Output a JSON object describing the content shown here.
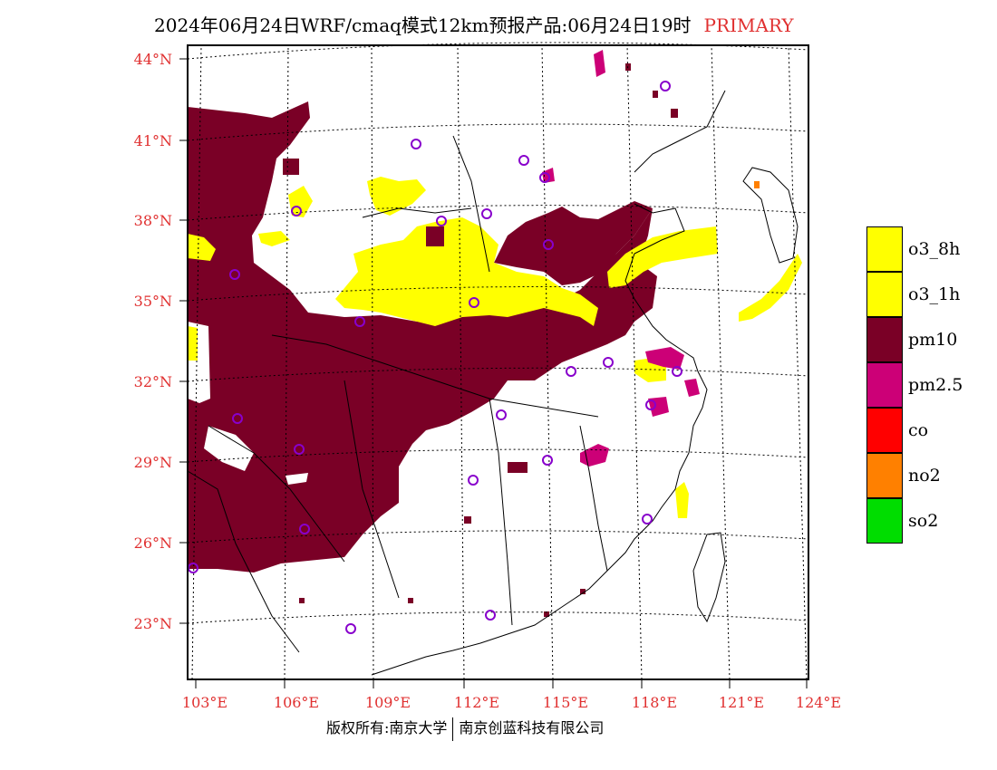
{
  "title": {
    "text": "2024年06月24日WRF/cmaq模式12km预报产品:06月24日19时",
    "primary": "PRIMARY",
    "primary_color": "#e03030"
  },
  "axes": {
    "lat_labels": [
      "44°N",
      "41°N",
      "38°N",
      "35°N",
      "32°N",
      "29°N",
      "26°N",
      "23°N"
    ],
    "lon_labels": [
      "103°E",
      "106°E",
      "109°E",
      "112°E",
      "115°E",
      "118°E",
      "121°E",
      "124°E"
    ],
    "label_color": "#e03030"
  },
  "legend": [
    {
      "label": "o3_8h",
      "color": "#ffff00"
    },
    {
      "label": "o3_1h",
      "color": "#ffff00"
    },
    {
      "label": "pm10",
      "color": "#7a0026"
    },
    {
      "label": "pm2.5",
      "color": "#cc0077"
    },
    {
      "label": "co",
      "color": "#ff0000"
    },
    {
      "label": "no2",
      "color": "#ff8000"
    },
    {
      "label": "so2",
      "color": "#00dd00"
    }
  ],
  "footer": {
    "left": "版权所有:南京大学",
    "right": "南京创蓝科技有限公司"
  },
  "map_colors": {
    "pm10": "#7a0026",
    "o3": "#ffff00",
    "pm25": "#cc0077",
    "no2": "#ff8000",
    "station": "#8800cc"
  }
}
